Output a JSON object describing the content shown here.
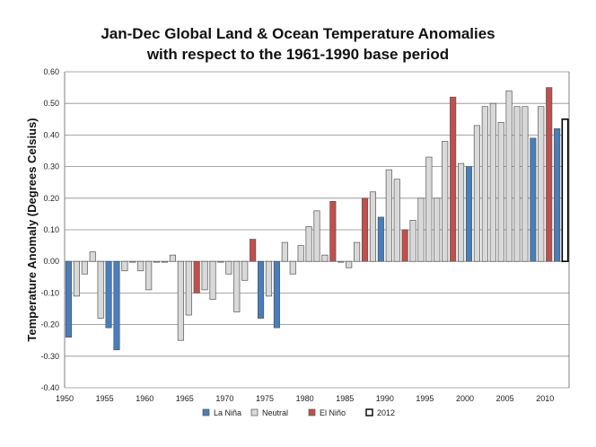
{
  "chart_data": {
    "type": "bar",
    "title_line1": "Jan-Dec Global Land & Ocean Temperature Anomalies",
    "title_line2": "with respect to the 1961-1990 base period",
    "ylabel": "Temperature Anomaly (Degrees Celsius)",
    "xlabel": "",
    "ylim": [
      -0.4,
      0.6
    ],
    "xlim": [
      1950,
      2012
    ],
    "yticks": [
      "-0.40",
      "-0.30",
      "-0.20",
      "-0.10",
      "0.00",
      "0.10",
      "0.20",
      "0.30",
      "0.40",
      "0.50",
      "0.60"
    ],
    "xticks": [
      "1950",
      "1955",
      "1960",
      "1965",
      "1970",
      "1975",
      "1980",
      "1985",
      "1990",
      "1995",
      "2000",
      "2005",
      "2010"
    ],
    "grid": true,
    "legend_placement": "bottom",
    "legend": [
      {
        "key": "lanina",
        "label": "La Niña"
      },
      {
        "key": "neutral",
        "label": "Neutral"
      },
      {
        "key": "elnino",
        "label": "El Niño"
      },
      {
        "key": "y2012",
        "label": "2012"
      }
    ],
    "colors": {
      "lanina": "#4a7ebb",
      "neutral": "#d9d9d9",
      "elnino": "#c0504d",
      "y2012": "#ffffff"
    },
    "data": [
      {
        "year": 1950,
        "value": -0.24,
        "cat": "lanina"
      },
      {
        "year": 1951,
        "value": -0.11,
        "cat": "neutral"
      },
      {
        "year": 1952,
        "value": -0.04,
        "cat": "neutral"
      },
      {
        "year": 1953,
        "value": 0.03,
        "cat": "neutral"
      },
      {
        "year": 1954,
        "value": -0.18,
        "cat": "neutral"
      },
      {
        "year": 1955,
        "value": -0.21,
        "cat": "lanina"
      },
      {
        "year": 1956,
        "value": -0.28,
        "cat": "lanina"
      },
      {
        "year": 1957,
        "value": -0.03,
        "cat": "neutral"
      },
      {
        "year": 1958,
        "value": 0.0,
        "cat": "neutral"
      },
      {
        "year": 1959,
        "value": -0.03,
        "cat": "neutral"
      },
      {
        "year": 1960,
        "value": -0.09,
        "cat": "neutral"
      },
      {
        "year": 1961,
        "value": 0.0,
        "cat": "neutral"
      },
      {
        "year": 1962,
        "value": 0.0,
        "cat": "neutral"
      },
      {
        "year": 1963,
        "value": 0.02,
        "cat": "neutral"
      },
      {
        "year": 1964,
        "value": -0.25,
        "cat": "neutral"
      },
      {
        "year": 1965,
        "value": -0.17,
        "cat": "neutral"
      },
      {
        "year": 1966,
        "value": -0.1,
        "cat": "elnino"
      },
      {
        "year": 1967,
        "value": -0.09,
        "cat": "neutral"
      },
      {
        "year": 1968,
        "value": -0.12,
        "cat": "neutral"
      },
      {
        "year": 1969,
        "value": 0.0,
        "cat": "neutral"
      },
      {
        "year": 1970,
        "value": -0.04,
        "cat": "neutral"
      },
      {
        "year": 1971,
        "value": -0.16,
        "cat": "neutral"
      },
      {
        "year": 1972,
        "value": -0.06,
        "cat": "neutral"
      },
      {
        "year": 1973,
        "value": 0.07,
        "cat": "elnino"
      },
      {
        "year": 1974,
        "value": -0.18,
        "cat": "lanina"
      },
      {
        "year": 1975,
        "value": -0.11,
        "cat": "neutral"
      },
      {
        "year": 1976,
        "value": -0.21,
        "cat": "lanina"
      },
      {
        "year": 1977,
        "value": 0.06,
        "cat": "neutral"
      },
      {
        "year": 1978,
        "value": -0.04,
        "cat": "neutral"
      },
      {
        "year": 1979,
        "value": 0.05,
        "cat": "neutral"
      },
      {
        "year": 1980,
        "value": 0.11,
        "cat": "neutral"
      },
      {
        "year": 1981,
        "value": 0.16,
        "cat": "neutral"
      },
      {
        "year": 1982,
        "value": 0.02,
        "cat": "neutral"
      },
      {
        "year": 1983,
        "value": 0.19,
        "cat": "elnino"
      },
      {
        "year": 1984,
        "value": 0.0,
        "cat": "neutral"
      },
      {
        "year": 1985,
        "value": -0.02,
        "cat": "neutral"
      },
      {
        "year": 1986,
        "value": 0.06,
        "cat": "neutral"
      },
      {
        "year": 1987,
        "value": 0.2,
        "cat": "elnino"
      },
      {
        "year": 1988,
        "value": 0.22,
        "cat": "neutral"
      },
      {
        "year": 1989,
        "value": 0.14,
        "cat": "lanina"
      },
      {
        "year": 1990,
        "value": 0.29,
        "cat": "neutral"
      },
      {
        "year": 1991,
        "value": 0.26,
        "cat": "neutral"
      },
      {
        "year": 1992,
        "value": 0.1,
        "cat": "elnino"
      },
      {
        "year": 1993,
        "value": 0.13,
        "cat": "neutral"
      },
      {
        "year": 1994,
        "value": 0.2,
        "cat": "neutral"
      },
      {
        "year": 1995,
        "value": 0.33,
        "cat": "neutral"
      },
      {
        "year": 1996,
        "value": 0.2,
        "cat": "neutral"
      },
      {
        "year": 1997,
        "value": 0.38,
        "cat": "neutral"
      },
      {
        "year": 1998,
        "value": 0.52,
        "cat": "elnino"
      },
      {
        "year": 1999,
        "value": 0.31,
        "cat": "neutral"
      },
      {
        "year": 2000,
        "value": 0.3,
        "cat": "lanina"
      },
      {
        "year": 2001,
        "value": 0.43,
        "cat": "neutral"
      },
      {
        "year": 2002,
        "value": 0.49,
        "cat": "neutral"
      },
      {
        "year": 2003,
        "value": 0.5,
        "cat": "neutral"
      },
      {
        "year": 2004,
        "value": 0.44,
        "cat": "neutral"
      },
      {
        "year": 2005,
        "value": 0.54,
        "cat": "neutral"
      },
      {
        "year": 2006,
        "value": 0.49,
        "cat": "neutral"
      },
      {
        "year": 2007,
        "value": 0.49,
        "cat": "neutral"
      },
      {
        "year": 2008,
        "value": 0.39,
        "cat": "lanina"
      },
      {
        "year": 2009,
        "value": 0.49,
        "cat": "neutral"
      },
      {
        "year": 2010,
        "value": 0.55,
        "cat": "elnino"
      },
      {
        "year": 2011,
        "value": 0.42,
        "cat": "lanina"
      },
      {
        "year": 2012,
        "value": 0.45,
        "cat": "y2012"
      }
    ]
  }
}
